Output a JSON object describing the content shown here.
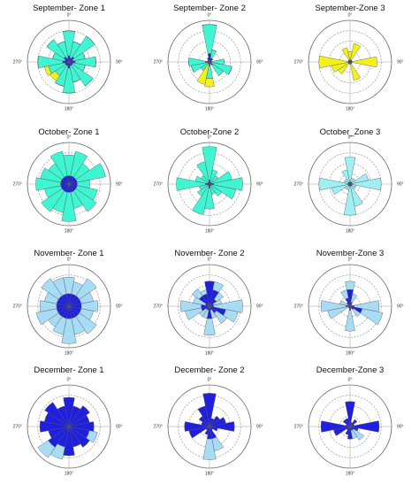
{
  "chart_data": [
    {
      "type": "rose",
      "title": "September- Zone 1",
      "x": [
        0,
        22.5,
        45,
        67.5,
        90,
        112.5,
        135,
        157.5,
        180,
        202.5,
        225,
        247.5,
        270,
        292.5,
        315,
        337.5
      ],
      "ylim": [
        0,
        10
      ],
      "xticks": [
        {
          "value": 0,
          "label": "0°"
        },
        {
          "value": 90,
          "label": "90°"
        },
        {
          "value": 180,
          "label": "180°"
        },
        {
          "value": 270,
          "label": "270°"
        }
      ],
      "series": [
        {
          "color": "#1f1fe0",
          "values": [
            1.5,
            1,
            1.5,
            1,
            1.5,
            1,
            1,
            1,
            1.5,
            1,
            1,
            1,
            1.5,
            1,
            1.5,
            1
          ]
        },
        {
          "color": "#3ff5d2",
          "values": [
            6,
            4,
            6,
            3,
            5,
            3,
            6,
            4,
            6,
            5,
            3,
            4,
            6,
            3,
            5,
            4
          ]
        },
        {
          "color": "#f2f21a",
          "values": [
            0,
            0,
            0,
            0,
            0,
            0,
            0,
            0,
            0,
            0,
            1.5,
            1,
            0,
            0,
            0,
            0
          ]
        }
      ]
    },
    {
      "type": "rose",
      "title": "September- Zone 2",
      "x": [
        0,
        22.5,
        45,
        67.5,
        90,
        112.5,
        135,
        157.5,
        180,
        202.5,
        225,
        247.5,
        270,
        292.5,
        315,
        337.5
      ],
      "ylim": [
        0,
        10
      ],
      "xticks": [
        {
          "value": 0,
          "label": "0°"
        },
        {
          "value": 90,
          "label": "90°"
        },
        {
          "value": 180,
          "label": "180°"
        },
        {
          "value": 270,
          "label": "270°"
        }
      ],
      "series": [
        {
          "color": "#1f1fe0",
          "values": [
            2,
            1,
            1,
            0.5,
            0.5,
            0.5,
            1,
            0.5,
            1,
            0.5,
            0.5,
            0.5,
            1,
            0.5,
            0.5,
            1
          ]
        },
        {
          "color": "#3ff5d2",
          "values": [
            7,
            2,
            0,
            0,
            3,
            5,
            3,
            0,
            3,
            0,
            2,
            4,
            4,
            0,
            0,
            0
          ]
        },
        {
          "color": "#f2f21a",
          "values": [
            0,
            0,
            0,
            0,
            0,
            0,
            0,
            0,
            2,
            5,
            0,
            0,
            0,
            0,
            0,
            0
          ]
        }
      ]
    },
    {
      "type": "rose",
      "title": "September-Zone 3",
      "x": [
        0,
        22.5,
        45,
        67.5,
        90,
        112.5,
        135,
        157.5,
        180,
        202.5,
        225,
        247.5,
        270,
        292.5,
        315,
        337.5
      ],
      "ylim": [
        0,
        10
      ],
      "xticks": [
        {
          "value": 0,
          "label": "0°"
        },
        {
          "value": 90,
          "label": "90°"
        },
        {
          "value": 180,
          "label": "180°"
        },
        {
          "value": 270,
          "label": "270°"
        }
      ],
      "series": [
        {
          "color": "#1f1fe0",
          "values": [
            0.5,
            0.5,
            0.5,
            0.5,
            0.5,
            0.5,
            0.5,
            0.5,
            0.5,
            0.5,
            0.5,
            0.5,
            0.5,
            0.5,
            0.5,
            0.5
          ]
        },
        {
          "color": "#f2f21a",
          "values": [
            2,
            4,
            0,
            0,
            6,
            0,
            0,
            4,
            0,
            0,
            3,
            4,
            7,
            0,
            0,
            3
          ]
        }
      ]
    },
    {
      "type": "rose",
      "title": "October- Zone 1",
      "x": [
        0,
        22.5,
        45,
        67.5,
        90,
        112.5,
        135,
        157.5,
        180,
        202.5,
        225,
        247.5,
        270,
        292.5,
        315,
        337.5
      ],
      "ylim": [
        0,
        10
      ],
      "xticks": [
        {
          "value": 0,
          "label": "0°"
        },
        {
          "value": 90,
          "label": "90°"
        },
        {
          "value": 180,
          "label": "180°"
        },
        {
          "value": 270,
          "label": "270°"
        }
      ],
      "series": [
        {
          "color": "#1f1fe0",
          "values": [
            2,
            2,
            2,
            2,
            2,
            2,
            2,
            2,
            2,
            2,
            2,
            2,
            2,
            2,
            2,
            2
          ]
        },
        {
          "color": "#3ff5d2",
          "values": [
            5,
            6,
            4,
            7,
            3,
            5,
            6,
            4,
            7,
            5,
            6,
            4,
            6,
            5,
            4,
            6
          ]
        }
      ]
    },
    {
      "type": "rose",
      "title": "October-Zone 2",
      "x": [
        0,
        22.5,
        45,
        67.5,
        90,
        112.5,
        135,
        157.5,
        180,
        202.5,
        225,
        247.5,
        270,
        292.5,
        315,
        337.5
      ],
      "ylim": [
        0,
        10
      ],
      "xticks": [
        {
          "value": 0,
          "label": "0°"
        },
        {
          "value": 90,
          "label": "90°"
        },
        {
          "value": 180,
          "label": "180°"
        },
        {
          "value": 270,
          "label": "270°"
        }
      ],
      "series": [
        {
          "color": "#1f1fe0",
          "values": [
            1,
            0.5,
            0.5,
            0.5,
            1,
            0.5,
            0.5,
            0.5,
            1,
            0.5,
            0.5,
            0.5,
            1,
            0.5,
            0.5,
            0.5
          ]
        },
        {
          "color": "#3ff5d2",
          "values": [
            8,
            3,
            2,
            5,
            7,
            6,
            3,
            2,
            5,
            7,
            3,
            2,
            7,
            3,
            2,
            5
          ]
        }
      ]
    },
    {
      "type": "rose",
      "title": "October_Zone 3",
      "x": [
        0,
        22.5,
        45,
        67.5,
        90,
        112.5,
        135,
        157.5,
        180,
        202.5,
        225,
        247.5,
        270,
        292.5,
        315,
        337.5
      ],
      "ylim": [
        0,
        10
      ],
      "xticks": [
        {
          "value": 0,
          "label": "0°"
        },
        {
          "value": 90,
          "label": "90°"
        },
        {
          "value": 180,
          "label": "180°"
        },
        {
          "value": 270,
          "label": "270°"
        }
      ],
      "series": [
        {
          "color": "#1f1fe0",
          "values": [
            0.5,
            0.5,
            0.5,
            0.5,
            0.5,
            0.5,
            0.5,
            0.5,
            0.5,
            0.5,
            0.5,
            0.5,
            0.5,
            0.5,
            0.5,
            0.5
          ]
        },
        {
          "color": "#9ff0f5",
          "values": [
            6,
            1,
            1,
            4,
            7,
            1,
            1,
            5,
            7,
            1,
            1,
            4,
            7,
            1,
            1,
            3
          ]
        }
      ]
    },
    {
      "type": "rose",
      "title": "November- Zone 1",
      "x": [
        0,
        22.5,
        45,
        67.5,
        90,
        112.5,
        135,
        157.5,
        180,
        202.5,
        225,
        247.5,
        270,
        292.5,
        315,
        337.5
      ],
      "ylim": [
        0,
        10
      ],
      "xticks": [
        {
          "value": 0,
          "label": "0°"
        },
        {
          "value": 90,
          "label": "90°"
        },
        {
          "value": 180,
          "label": "180°"
        },
        {
          "value": 270,
          "label": "270°"
        }
      ],
      "series": [
        {
          "color": "#1f1fe0",
          "values": [
            3,
            3,
            3,
            3,
            3,
            3,
            3,
            3,
            3,
            3,
            3,
            3,
            3,
            3,
            3,
            3
          ]
        },
        {
          "color": "#a8dcf5",
          "values": [
            4,
            3,
            5,
            3,
            4,
            3,
            5,
            4,
            6,
            4,
            3,
            5,
            4,
            3,
            5,
            4
          ]
        }
      ]
    },
    {
      "type": "rose",
      "title": "November- Zone 2",
      "x": [
        0,
        22.5,
        45,
        67.5,
        90,
        112.5,
        135,
        157.5,
        180,
        202.5,
        225,
        247.5,
        270,
        292.5,
        315,
        337.5
      ],
      "ylim": [
        0,
        10
      ],
      "xticks": [
        {
          "value": 0,
          "label": "0°"
        },
        {
          "value": 90,
          "label": "90°"
        },
        {
          "value": 180,
          "label": "180°"
        },
        {
          "value": 270,
          "label": "270°"
        }
      ],
      "series": [
        {
          "color": "#1f1fe0",
          "values": [
            6,
            4,
            2,
            1,
            1,
            4,
            2,
            1,
            3,
            1,
            1,
            2,
            2,
            1,
            3,
            3
          ]
        },
        {
          "color": "#a8dcf5",
          "values": [
            0,
            2,
            2,
            2,
            7,
            3,
            3,
            2,
            4,
            2,
            2,
            4,
            5,
            3,
            2,
            1
          ]
        }
      ]
    },
    {
      "type": "rose",
      "title": "November-Zone 3",
      "x": [
        0,
        22.5,
        45,
        67.5,
        90,
        112.5,
        135,
        157.5,
        180,
        202.5,
        225,
        247.5,
        270,
        292.5,
        315,
        337.5
      ],
      "ylim": [
        0,
        10
      ],
      "xticks": [
        {
          "value": 0,
          "label": "0°"
        },
        {
          "value": 90,
          "label": "90°"
        },
        {
          "value": 180,
          "label": "180°"
        },
        {
          "value": 270,
          "label": "270°"
        }
      ],
      "series": [
        {
          "color": "#1f1fe0",
          "values": [
            4,
            1,
            0.5,
            0.5,
            1,
            3,
            1,
            0.5,
            1,
            0.5,
            0.5,
            0.5,
            1,
            0.5,
            1,
            2
          ]
        },
        {
          "color": "#a8dcf5",
          "values": [
            2,
            2,
            0,
            0,
            6,
            5,
            2,
            0,
            5,
            0,
            0,
            5,
            6,
            2,
            0,
            2
          ]
        }
      ]
    },
    {
      "type": "rose",
      "title": "December- Zone 1",
      "x": [
        0,
        22.5,
        45,
        67.5,
        90,
        112.5,
        135,
        157.5,
        180,
        202.5,
        225,
        247.5,
        270,
        292.5,
        315,
        337.5
      ],
      "ylim": [
        0,
        10
      ],
      "xticks": [
        {
          "value": 0,
          "label": "0°"
        },
        {
          "value": 90,
          "label": "90°"
        },
        {
          "value": 180,
          "label": "180°"
        },
        {
          "value": 270,
          "label": "270°"
        }
      ],
      "series": [
        {
          "color": "#1f1fe0",
          "values": [
            7,
            5,
            6,
            5,
            6,
            5,
            6,
            5,
            7,
            5,
            6,
            5,
            7,
            6,
            7,
            5
          ]
        },
        {
          "color": "#a8dcf5",
          "values": [
            0,
            0,
            0,
            0,
            0,
            2,
            0,
            0,
            0,
            3,
            3,
            0,
            0,
            0,
            0,
            0
          ]
        }
      ]
    },
    {
      "type": "rose",
      "title": "December- Zone 2",
      "x": [
        0,
        22.5,
        45,
        67.5,
        90,
        112.5,
        135,
        157.5,
        180,
        202.5,
        225,
        247.5,
        270,
        292.5,
        315,
        337.5
      ],
      "ylim": [
        0,
        10
      ],
      "xticks": [
        {
          "value": 0,
          "label": "0°"
        },
        {
          "value": 90,
          "label": "90°"
        },
        {
          "value": 180,
          "label": "180°"
        },
        {
          "value": 270,
          "label": "270°"
        }
      ],
      "series": [
        {
          "color": "#1f1fe0",
          "values": [
            8,
            2,
            3,
            4,
            6,
            2,
            1,
            3,
            3,
            2,
            1,
            5,
            6,
            2,
            3,
            5
          ]
        },
        {
          "color": "#a8dcf5",
          "values": [
            0,
            0,
            0,
            0,
            0,
            0,
            0,
            3,
            5,
            0,
            0,
            0,
            0,
            0,
            0,
            0
          ]
        }
      ]
    },
    {
      "type": "rose",
      "title": "December-Zone 3",
      "x": [
        0,
        22.5,
        45,
        67.5,
        90,
        112.5,
        135,
        157.5,
        180,
        202.5,
        225,
        247.5,
        270,
        292.5,
        315,
        337.5
      ],
      "ylim": [
        0,
        10
      ],
      "xticks": [
        {
          "value": 0,
          "label": "0°"
        },
        {
          "value": 90,
          "label": "90°"
        },
        {
          "value": 180,
          "label": "180°"
        },
        {
          "value": 270,
          "label": "270°"
        }
      ],
      "series": [
        {
          "color": "#1f1fe0",
          "values": [
            6,
            1,
            2,
            1,
            7,
            2,
            1,
            1,
            3,
            2,
            1,
            4,
            7,
            1,
            2,
            2
          ]
        },
        {
          "color": "#a8dcf5",
          "values": [
            0,
            0,
            0,
            0,
            0,
            0,
            3,
            2,
            0,
            0,
            0,
            0,
            0,
            0,
            0,
            0
          ]
        }
      ]
    }
  ]
}
